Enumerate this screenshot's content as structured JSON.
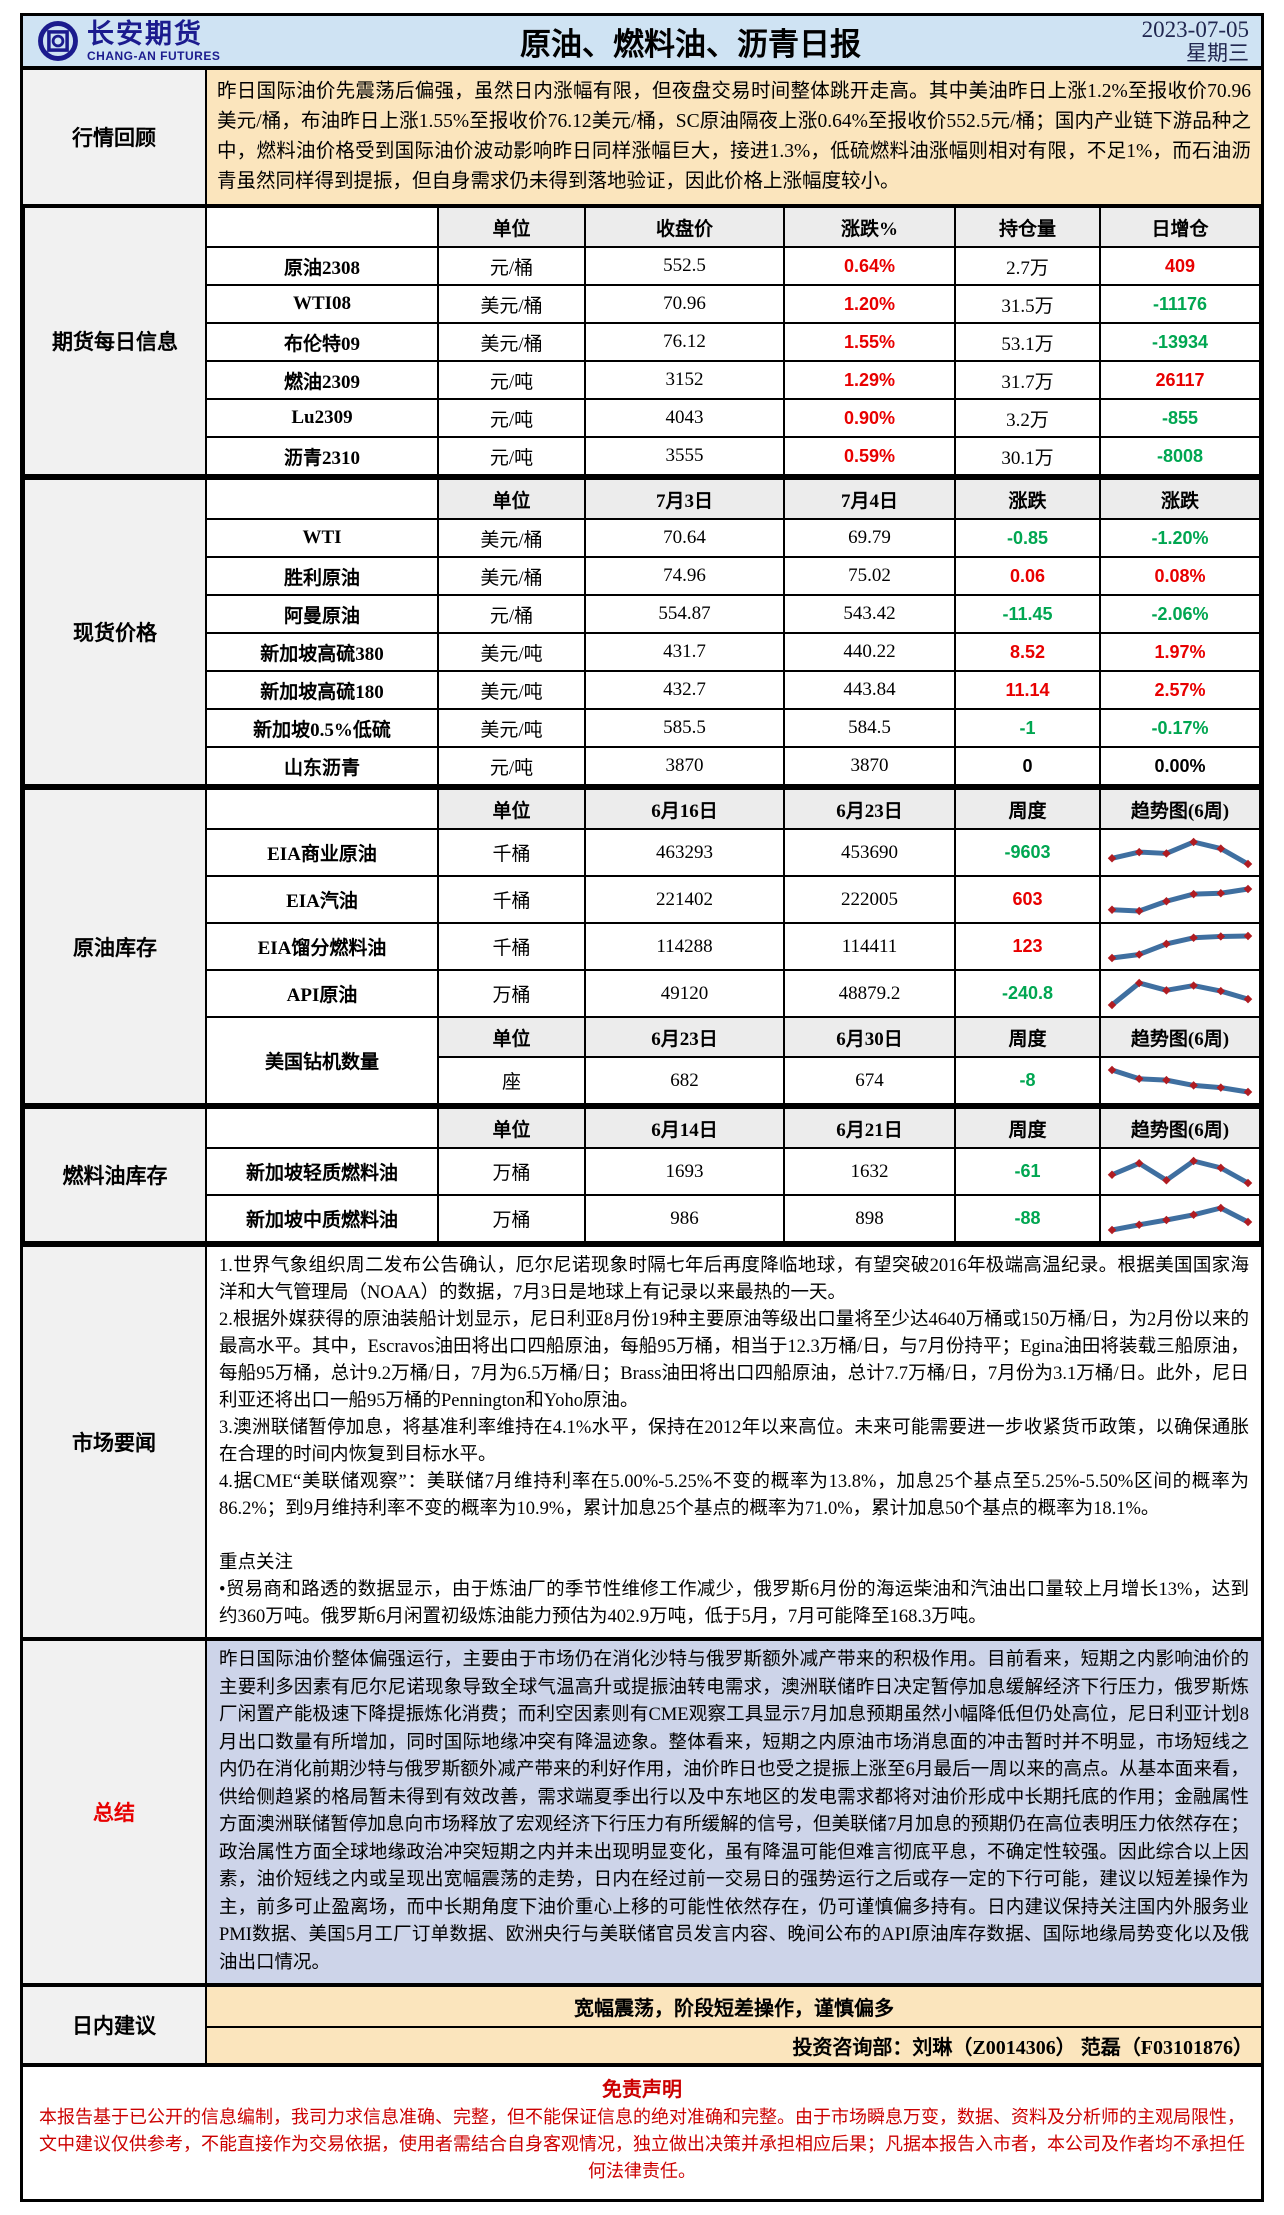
{
  "header": {
    "brand_cn": "长安期货",
    "brand_en": "CHANG-AN FUTURES",
    "title": "原油、燃料油、沥青日报",
    "date": "2023-07-05",
    "weekday": "星期三"
  },
  "review": {
    "label": "行情回顾",
    "text": "昨日国际油价先震荡后偏强，虽然日内涨幅有限，但夜盘交易时间整体跳开走高。其中美油昨日上涨1.2%至报收价70.96美元/桶，布油昨日上涨1.55%至报收价76.12美元/桶，SC原油隔夜上涨0.64%至报收价552.5元/桶；国内产业链下游品种之中，燃料油价格受到国际油价波动影响昨日同样涨幅巨大，接进1.3%，低硫燃料油涨幅则相对有限，不足1%，而石油沥青虽然同样得到提振，但自身需求仍未得到落地验证，因此价格上涨幅度较小。"
  },
  "futures": {
    "label": "期货每日信息",
    "headers": [
      "单位",
      "收盘价",
      "涨跌%",
      "持仓量",
      "日增仓"
    ],
    "rows": [
      {
        "name": "原油2308",
        "unit": "元/桶",
        "close": "552.5",
        "chg_pct": "0.64%",
        "oi": "2.7万",
        "oi_chg": "409"
      },
      {
        "name": "WTI08",
        "unit": "美元/桶",
        "close": "70.96",
        "chg_pct": "1.20%",
        "oi": "31.5万",
        "oi_chg": "-11176"
      },
      {
        "name": "布伦特09",
        "unit": "美元/桶",
        "close": "76.12",
        "chg_pct": "1.55%",
        "oi": "53.1万",
        "oi_chg": "-13934"
      },
      {
        "name": "燃油2309",
        "unit": "元/吨",
        "close": "3152",
        "chg_pct": "1.29%",
        "oi": "31.7万",
        "oi_chg": "26117"
      },
      {
        "name": "Lu2309",
        "unit": "元/吨",
        "close": "4043",
        "chg_pct": "0.90%",
        "oi": "3.2万",
        "oi_chg": "-855"
      },
      {
        "name": "沥青2310",
        "unit": "元/吨",
        "close": "3555",
        "chg_pct": "0.59%",
        "oi": "30.1万",
        "oi_chg": "-8008"
      }
    ]
  },
  "spot": {
    "label": "现货价格",
    "headers": [
      "单位",
      "7月3日",
      "7月4日",
      "涨跌",
      "涨跌"
    ],
    "rows": [
      {
        "name": "WTI",
        "unit": "美元/桶",
        "d1": "70.64",
        "d2": "69.79",
        "chg": "-0.85",
        "chg_pct": "-1.20%"
      },
      {
        "name": "胜利原油",
        "unit": "美元/桶",
        "d1": "74.96",
        "d2": "75.02",
        "chg": "0.06",
        "chg_pct": "0.08%"
      },
      {
        "name": "阿曼原油",
        "unit": "元/桶",
        "d1": "554.87",
        "d2": "543.42",
        "chg": "-11.45",
        "chg_pct": "-2.06%"
      },
      {
        "name": "新加坡高硫380",
        "unit": "美元/吨",
        "d1": "431.7",
        "d2": "440.22",
        "chg": "8.52",
        "chg_pct": "1.97%"
      },
      {
        "name": "新加坡高硫180",
        "unit": "美元/吨",
        "d1": "432.7",
        "d2": "443.84",
        "chg": "11.14",
        "chg_pct": "2.57%"
      },
      {
        "name": "新加坡0.5%低硫",
        "unit": "美元/吨",
        "d1": "585.5",
        "d2": "584.5",
        "chg": "-1",
        "chg_pct": "-0.17%"
      },
      {
        "name": "山东沥青",
        "unit": "元/吨",
        "d1": "3870",
        "d2": "3870",
        "chg": "0",
        "chg_pct": "0.00%"
      }
    ]
  },
  "crude_inv": {
    "label": "原油库存",
    "headers": [
      "单位",
      "6月16日",
      "6月23日",
      "周度",
      "趋势图(6周)"
    ],
    "rows": [
      {
        "name": "EIA商业原油",
        "unit": "千桶",
        "d1": "463293",
        "d2": "453690",
        "chg": "-9603"
      },
      {
        "name": "EIA汽油",
        "unit": "千桶",
        "d1": "221402",
        "d2": "222005",
        "chg": "603"
      },
      {
        "name": "EIA馏分燃料油",
        "unit": "千桶",
        "d1": "114288",
        "d2": "114411",
        "chg": "123"
      },
      {
        "name": "API原油",
        "unit": "万桶",
        "d1": "49120",
        "d2": "48879.2",
        "chg": "-240.8"
      }
    ],
    "rig": {
      "name": "美国钻机数量",
      "headers": [
        "单位",
        "6月23日",
        "6月30日",
        "周度",
        "趋势图(6周)"
      ],
      "unit": "座",
      "d1": "682",
      "d2": "674",
      "chg": "-8"
    }
  },
  "fuel_inv": {
    "label": "燃料油库存",
    "headers": [
      "单位",
      "6月14日",
      "6月21日",
      "周度",
      "趋势图(6周)"
    ],
    "rows": [
      {
        "name": "新加坡轻质燃料油",
        "unit": "万桶",
        "d1": "1693",
        "d2": "1632",
        "chg": "-61"
      },
      {
        "name": "新加坡中质燃料油",
        "unit": "万桶",
        "d1": "986",
        "d2": "898",
        "chg": "-88"
      }
    ]
  },
  "news": {
    "label": "市场要闻",
    "items": [
      "1.世界气象组织周二发布公告确认，厄尔尼诺现象时隔七年后再度降临地球，有望突破2016年极端高温纪录。根据美国国家海洋和大气管理局（NOAA）的数据，7月3日是地球上有记录以来最热的一天。",
      "2.根据外媒获得的原油装船计划显示，尼日利亚8月份19种主要原油等级出口量将至少达4640万桶或150万桶/日，为2月份以来的最高水平。其中，Escravos油田将出口四船原油，每船95万桶，相当于12.3万桶/日，与7月份持平；Egina油田将装载三船原油，每船95万桶，总计9.2万桶/日，7月为6.5万桶/日；Brass油田将出口四船原油，总计7.7万桶/日，7月份为3.1万桶/日。此外，尼日利亚还将出口一船95万桶的Pennington和Yoho原油。",
      "3.澳洲联储暂停加息，将基准利率维持在4.1%水平，保持在2012年以来高位。未来可能需要进一步收紧货币政策，以确保通胀在合理的时间内恢复到目标水平。",
      "4.据CME“美联储观察”：美联储7月维持利率在5.00%-5.25%不变的概率为13.8%，加息25个基点至5.25%-5.50%区间的概率为86.2%；到9月维持利率不变的概率为10.9%，累计加息25个基点的概率为71.0%，累计加息50个基点的概率为18.1%。",
      "重点关注",
      "•贸易商和路透的数据显示，由于炼油厂的季节性维修工作减少，俄罗斯6月份的海运柴油和汽油出口量较上月增长13%，达到约360万吨。俄罗斯6月闲置初级炼油能力预估为402.9万吨，低于5月，7月可能降至168.3万吨。"
    ]
  },
  "summary": {
    "label": "总结",
    "text": "昨日国际油价整体偏强运行，主要由于市场仍在消化沙特与俄罗斯额外减产带来的积极作用。目前看来，短期之内影响油价的主要利多因素有厄尔尼诺现象导致全球气温高升或提振油转电需求，澳洲联储昨日决定暂停加息缓解经济下行压力，俄罗斯炼厂闲置产能极速下降提振炼化消费；而利空因素则有CME观察工具显示7月加息预期虽然小幅降低但仍处高位，尼日利亚计划8月出口数量有所增加，同时国际地缘冲突有降温迹象。整体看来，短期之内原油市场消息面的冲击暂时并不明显，市场短线之内仍在消化前期沙特与俄罗斯额外减产带来的利好作用，油价昨日也受之提振上涨至6月最后一周以来的高点。从基本面来看，供给侧趋紧的格局暂未得到有效改善，需求端夏季出行以及中东地区的发电需求都将对油价形成中长期托底的作用；金融属性方面澳洲联储暂停加息向市场释放了宏观经济下行压力有所缓解的信号，但美联储7月加息的预期仍在高位表明压力依然存在；政治属性方面全球地缘政治冲突短期之内并未出现明显变化，虽有降温可能但难言彻底平息，不确定性较强。因此综合以上因素，油价短线之内或呈现出宽幅震荡的走势，日内在经过前一交易日的强势运行之后或存一定的下行可能，建议以短差操作为主，前多可止盈离场，而中长期角度下油价重心上移的可能性依然存在，仍可谨慎偏多持有。日内建议保持关注国内外服务业PMI数据、美国5月工厂订单数据、欧洲央行与美联储官员发言内容、晚间公布的API原油库存数据、国际地缘局势变化以及俄油出口情况。"
  },
  "advice": {
    "label": "日内建议",
    "text": "宽幅震荡，阶段短差操作，谨慎偏多",
    "dept": "投资咨询部：刘琳（Z0014306） 范磊（F03101876）"
  },
  "disclaimer": {
    "title": "免责声明",
    "text": "本报告基于已公开的信息编制，我司力求信息准确、完整，但不能保证信息的绝对准确和完整。由于市场瞬息万变，数据、资料及分析师的主观局限性，文中建议仅供参考，不能直接作为交易依据，使用者需结合自身客观情况，独立做出决策并承担相应后果；凡据本报告入市者，本公司及作者均不承担任何法律责任。"
  },
  "colors": {
    "up": "#e80000",
    "down": "#00a651",
    "header_bg": "#cfe3f3",
    "review_bg": "#fbe5bd",
    "summary_bg": "#cdd4e9",
    "brand_navy": "#1b1b8e",
    "spark_line": "#3f6fa0",
    "spark_marker": "#b01c22"
  },
  "chart_data": [
    {
      "type": "line",
      "title": "EIA商业原油 趋势图(6周)",
      "x": [
        1,
        2,
        3,
        4,
        5,
        6
      ],
      "values": [
        38,
        52,
        49,
        75,
        60,
        25
      ],
      "ylabel": "相对水平",
      "legend_position": "none"
    },
    {
      "type": "line",
      "title": "EIA汽油 趋势图(6周)",
      "x": [
        1,
        2,
        3,
        4,
        5,
        6
      ],
      "values": [
        25,
        22,
        45,
        62,
        64,
        74
      ],
      "ylabel": "相对水平",
      "legend_position": "none"
    },
    {
      "type": "line",
      "title": "EIA馏分燃料油 趋势图(6周)",
      "x": [
        1,
        2,
        3,
        4,
        5,
        6
      ],
      "values": [
        20,
        28,
        52,
        66,
        69,
        70
      ],
      "ylabel": "相对水平",
      "legend_position": "none"
    },
    {
      "type": "line",
      "title": "API原油 趋势图(6周)",
      "x": [
        1,
        2,
        3,
        4,
        5,
        6
      ],
      "values": [
        12,
        72,
        52,
        65,
        50,
        28
      ],
      "ylabel": "相对水平",
      "legend_position": "none"
    },
    {
      "type": "line",
      "title": "美国钻机数量 趋势图(6周)",
      "x": [
        1,
        2,
        3,
        4,
        5,
        6
      ],
      "values": [
        78,
        58,
        55,
        43,
        38,
        28
      ],
      "ylabel": "相对水平",
      "legend_position": "none"
    },
    {
      "type": "line",
      "title": "新加坡轻质燃料油 趋势图(6周)",
      "x": [
        1,
        2,
        3,
        4,
        5,
        6
      ],
      "values": [
        50,
        75,
        38,
        80,
        65,
        32
      ],
      "ylabel": "相对水平",
      "legend_position": "none"
    },
    {
      "type": "line",
      "title": "新加坡中质燃料油 趋势图(6周)",
      "x": [
        1,
        2,
        3,
        4,
        5,
        6
      ],
      "values": [
        25,
        38,
        50,
        63,
        80,
        45
      ],
      "ylabel": "相对水平",
      "legend_position": "none"
    }
  ]
}
